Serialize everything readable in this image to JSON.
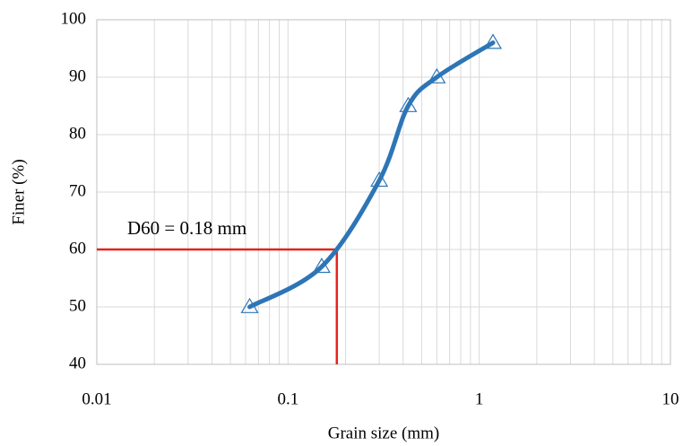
{
  "chart_data": {
    "type": "line",
    "x_axis_label": "Grain size (mm)",
    "y_axis_label": "Finer (%)",
    "x": [
      0.063,
      0.15,
      0.3,
      0.425,
      0.6,
      1.18
    ],
    "series": [
      {
        "color": "#2e75b6",
        "values": [
          50,
          57,
          72,
          85,
          90,
          96
        ]
      }
    ],
    "xlim": [
      0.01,
      10
    ],
    "ylim": [
      40,
      100
    ],
    "xticks": [
      0.01,
      0.1,
      1,
      10
    ],
    "yticks": [
      40,
      50,
      60,
      70,
      80,
      90,
      100
    ],
    "x_minor_grid": [
      0.02,
      0.03,
      0.04,
      0.05,
      0.06,
      0.07,
      0.08,
      0.09,
      0.2,
      0.3,
      0.4,
      0.5,
      0.6,
      0.7,
      0.8,
      0.9,
      2,
      3,
      4,
      5,
      6,
      7,
      8,
      9
    ],
    "x_log_scale": true,
    "grid": true,
    "reference": {
      "x": 0.18,
      "y": 60,
      "label": "D60 = 0.18 mm",
      "color": "#e3241c"
    }
  }
}
